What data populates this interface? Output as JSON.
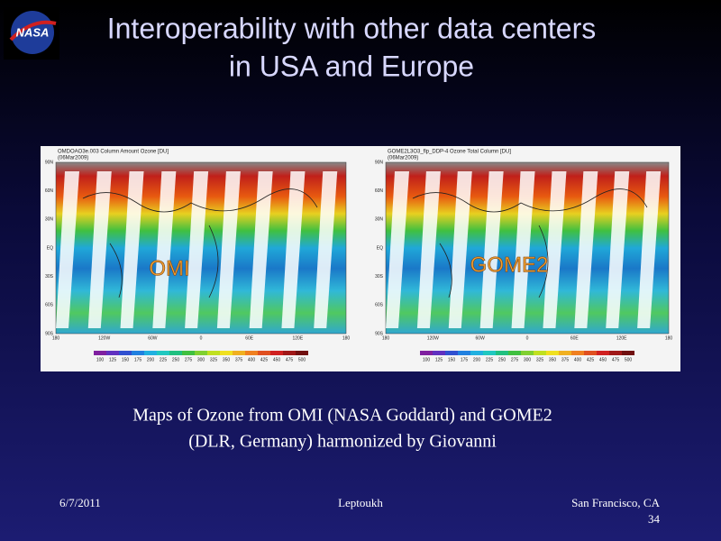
{
  "logo": "NASA",
  "title": [
    "Interoperability with other data centers",
    "in USA and Europe"
  ],
  "maps": [
    {
      "label": "OMI",
      "title": "OMDOAO3e.003 Column Amount Ozone [DU]",
      "date": "(06Mar2009)",
      "lat_labels": [
        "90N",
        "60N",
        "30N",
        "EQ",
        "30S",
        "60S",
        "90S"
      ],
      "lon_labels": [
        "180",
        "120W",
        "60W",
        "0",
        "60E",
        "120E",
        "180"
      ],
      "colorbar_labels": [
        100,
        125,
        150,
        175,
        200,
        225,
        250,
        275,
        300,
        325,
        350,
        375,
        400,
        425,
        450,
        475,
        500
      ]
    },
    {
      "label": "GOME2",
      "title": "GOME2L3O3_flp_DDP-4 Ozone Total Column [DU]",
      "date": "(06Mar2009)",
      "lat_labels": [
        "90N",
        "60N",
        "30N",
        "EQ",
        "30S",
        "60S",
        "90S"
      ],
      "lon_labels": [
        "180",
        "120W",
        "60W",
        "0",
        "60E",
        "120E",
        "180"
      ],
      "colorbar_labels": [
        100,
        125,
        150,
        175,
        200,
        225,
        250,
        275,
        300,
        325,
        350,
        375,
        400,
        425,
        450,
        475,
        500
      ]
    }
  ],
  "caption": [
    "Maps of Ozone from OMI (NASA Goddard) and GOME2",
    "(DLR, Germany) harmonized by Giovanni"
  ],
  "footer": {
    "date": "6/7/2011",
    "author": "Leptoukh",
    "location": "San Francisco, CA",
    "page": "34"
  }
}
